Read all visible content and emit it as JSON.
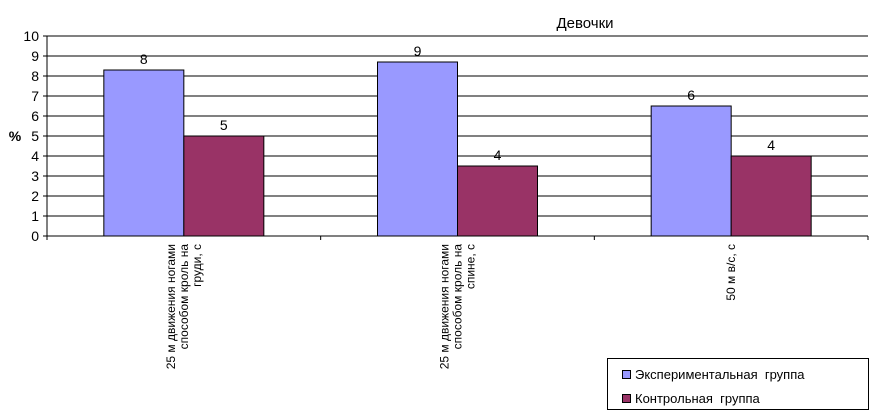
{
  "chart_data": {
    "type": "bar",
    "title": "Девочки",
    "ylabel": "%",
    "xlabel": "",
    "ylim": [
      0,
      10
    ],
    "yticks": [
      0,
      1,
      2,
      3,
      4,
      5,
      6,
      7,
      8,
      9,
      10
    ],
    "grid": true,
    "legend_position": "bottom-right",
    "categories": [
      [
        "25 м движения ногами",
        "способом кроль на",
        "груди, с"
      ],
      [
        "25 м движения ногами",
        "способом кроль на",
        "спине, с"
      ],
      [
        "50 м в/с, с"
      ]
    ],
    "series": [
      {
        "name": "Экспериментальная  группа",
        "color": "#9999ff",
        "values": [
          8.3,
          8.7,
          6.5
        ],
        "labels": [
          "8",
          "9",
          "6"
        ]
      },
      {
        "name": "Контрольная  группа",
        "color": "#993366",
        "values": [
          5.0,
          3.5,
          4.0
        ],
        "labels": [
          "5",
          "4",
          "4"
        ]
      }
    ]
  }
}
